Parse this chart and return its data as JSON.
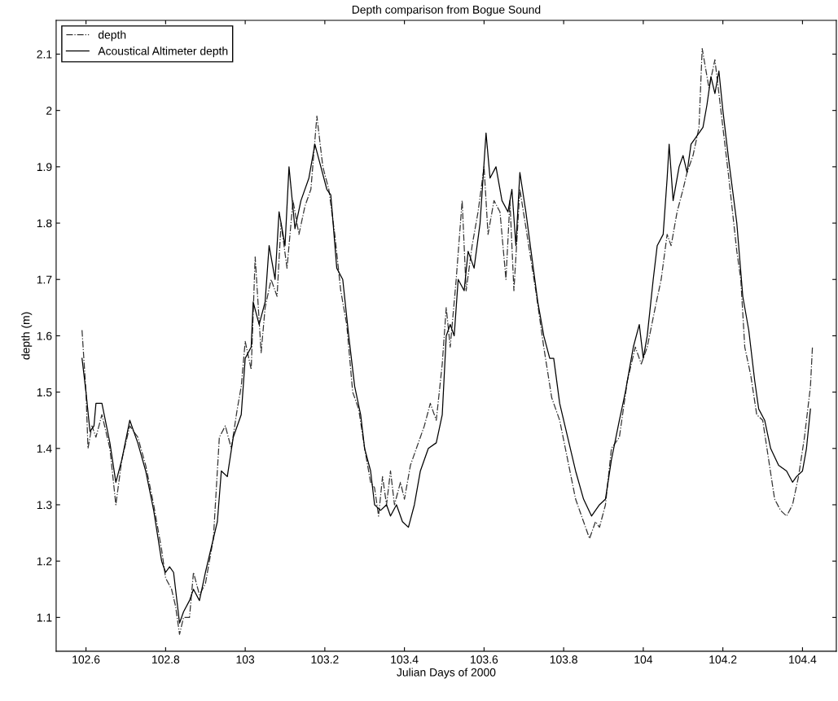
{
  "chart_data": {
    "type": "line",
    "title": "Depth comparison from Bogue Sound",
    "xlabel": "Julian Days of 2000",
    "ylabel": "depth (m)",
    "xlim": [
      102.525,
      104.485
    ],
    "ylim": [
      1.04,
      2.16
    ],
    "xticks": [
      102.6,
      102.8,
      103,
      103.2,
      103.4,
      103.6,
      103.8,
      104,
      104.2,
      104.4
    ],
    "yticks": [
      1.1,
      1.2,
      1.3,
      1.4,
      1.5,
      1.6,
      1.7,
      1.8,
      1.9,
      2,
      2.1
    ],
    "grid": false,
    "legend": "top left",
    "series": [
      {
        "name": "depth",
        "color": "#333333",
        "line_style": "dashdot",
        "x": [
          102.59,
          102.6,
          102.605,
          102.615,
          102.625,
          102.64,
          102.66,
          102.675,
          102.69,
          102.71,
          102.73,
          102.75,
          102.77,
          102.79,
          102.8,
          102.815,
          102.825,
          102.835,
          102.845,
          102.86,
          102.87,
          102.885,
          102.9,
          102.92,
          102.935,
          102.95,
          102.965,
          102.98,
          102.99,
          103.0,
          103.015,
          103.025,
          103.04,
          103.05,
          103.065,
          103.08,
          103.09,
          103.105,
          103.12,
          103.135,
          103.15,
          103.165,
          103.18,
          103.195,
          103.21,
          103.225,
          103.24,
          103.255,
          103.27,
          103.285,
          103.3,
          103.315,
          103.325,
          103.335,
          103.345,
          103.355,
          103.365,
          103.375,
          103.39,
          103.4,
          103.415,
          103.43,
          103.45,
          103.465,
          103.48,
          103.495,
          103.505,
          103.515,
          103.53,
          103.545,
          103.555,
          103.57,
          103.585,
          103.6,
          103.61,
          103.625,
          103.64,
          103.655,
          103.665,
          103.675,
          103.69,
          103.71,
          103.73,
          103.75,
          103.77,
          103.79,
          103.81,
          103.83,
          103.85,
          103.865,
          103.88,
          103.89,
          103.905,
          103.92,
          103.94,
          103.96,
          103.98,
          103.995,
          104.01,
          104.03,
          104.045,
          104.06,
          104.07,
          104.085,
          104.1,
          104.11,
          104.125,
          104.14,
          104.148,
          104.165,
          104.18,
          104.195,
          104.215,
          104.235,
          104.245,
          104.255,
          104.27,
          104.285,
          104.3,
          104.315,
          104.33,
          104.345,
          104.36,
          104.375,
          104.39,
          104.405,
          104.42,
          104.425
        ],
        "values": [
          1.61,
          1.5,
          1.4,
          1.44,
          1.42,
          1.46,
          1.4,
          1.3,
          1.38,
          1.44,
          1.42,
          1.37,
          1.3,
          1.22,
          1.17,
          1.15,
          1.12,
          1.07,
          1.1,
          1.1,
          1.18,
          1.14,
          1.16,
          1.24,
          1.42,
          1.44,
          1.4,
          1.47,
          1.51,
          1.59,
          1.54,
          1.74,
          1.57,
          1.65,
          1.7,
          1.67,
          1.8,
          1.72,
          1.84,
          1.78,
          1.83,
          1.86,
          1.99,
          1.9,
          1.86,
          1.78,
          1.68,
          1.62,
          1.5,
          1.47,
          1.4,
          1.34,
          1.33,
          1.28,
          1.35,
          1.3,
          1.36,
          1.3,
          1.34,
          1.31,
          1.37,
          1.4,
          1.44,
          1.48,
          1.45,
          1.55,
          1.65,
          1.58,
          1.7,
          1.84,
          1.68,
          1.76,
          1.82,
          1.9,
          1.78,
          1.84,
          1.82,
          1.7,
          1.84,
          1.68,
          1.86,
          1.77,
          1.68,
          1.58,
          1.49,
          1.45,
          1.38,
          1.31,
          1.27,
          1.24,
          1.27,
          1.26,
          1.3,
          1.4,
          1.42,
          1.52,
          1.58,
          1.55,
          1.58,
          1.65,
          1.7,
          1.78,
          1.76,
          1.82,
          1.86,
          1.89,
          1.92,
          1.97,
          2.11,
          2.04,
          2.09,
          2.0,
          1.88,
          1.75,
          1.7,
          1.58,
          1.53,
          1.46,
          1.45,
          1.38,
          1.31,
          1.29,
          1.28,
          1.3,
          1.35,
          1.42,
          1.51,
          1.58
        ]
      },
      {
        "name": "Acoustical Altimeter depth",
        "color": "#000000",
        "line_style": "solid",
        "x": [
          102.59,
          102.6,
          102.61,
          102.62,
          102.625,
          102.64,
          102.66,
          102.675,
          102.69,
          102.71,
          102.73,
          102.75,
          102.77,
          102.79,
          102.8,
          102.81,
          102.82,
          102.835,
          102.845,
          102.86,
          102.87,
          102.885,
          102.9,
          102.93,
          102.94,
          102.955,
          102.97,
          102.99,
          103.0,
          103.015,
          103.02,
          103.035,
          103.05,
          103.06,
          103.075,
          103.085,
          103.1,
          103.11,
          103.125,
          103.14,
          103.16,
          103.175,
          103.19,
          103.205,
          103.215,
          103.23,
          103.245,
          103.26,
          103.275,
          103.29,
          103.3,
          103.315,
          103.325,
          103.34,
          103.355,
          103.365,
          103.38,
          103.395,
          103.41,
          103.425,
          103.44,
          103.46,
          103.48,
          103.495,
          103.505,
          103.515,
          103.525,
          103.535,
          103.55,
          103.56,
          103.575,
          103.59,
          103.605,
          103.615,
          103.63,
          103.645,
          103.66,
          103.67,
          103.68,
          103.69,
          103.705,
          103.72,
          103.735,
          103.75,
          103.765,
          103.775,
          103.79,
          103.81,
          103.83,
          103.85,
          103.87,
          103.89,
          103.905,
          103.92,
          103.94,
          103.955,
          103.965,
          103.975,
          103.99,
          104.0,
          104.01,
          104.025,
          104.035,
          104.05,
          104.06,
          104.065,
          104.075,
          104.09,
          104.1,
          104.11,
          104.12,
          104.14,
          104.15,
          104.16,
          104.17,
          104.18,
          104.19,
          104.2,
          104.215,
          104.235,
          104.25,
          104.265,
          104.28,
          104.29,
          104.305,
          104.32,
          104.34,
          104.36,
          104.375,
          104.385,
          104.4,
          104.41,
          104.42
        ],
        "values": [
          1.56,
          1.5,
          1.43,
          1.44,
          1.48,
          1.48,
          1.41,
          1.34,
          1.38,
          1.45,
          1.41,
          1.36,
          1.29,
          1.2,
          1.18,
          1.19,
          1.18,
          1.09,
          1.11,
          1.13,
          1.15,
          1.13,
          1.18,
          1.27,
          1.36,
          1.35,
          1.42,
          1.46,
          1.56,
          1.58,
          1.66,
          1.62,
          1.66,
          1.76,
          1.7,
          1.82,
          1.76,
          1.9,
          1.79,
          1.84,
          1.88,
          1.94,
          1.9,
          1.86,
          1.85,
          1.72,
          1.7,
          1.6,
          1.51,
          1.46,
          1.4,
          1.36,
          1.3,
          1.29,
          1.3,
          1.28,
          1.3,
          1.27,
          1.26,
          1.3,
          1.36,
          1.4,
          1.41,
          1.46,
          1.6,
          1.62,
          1.6,
          1.7,
          1.68,
          1.75,
          1.72,
          1.8,
          1.96,
          1.88,
          1.9,
          1.84,
          1.82,
          1.86,
          1.76,
          1.89,
          1.82,
          1.74,
          1.66,
          1.6,
          1.56,
          1.56,
          1.48,
          1.42,
          1.36,
          1.31,
          1.28,
          1.3,
          1.31,
          1.38,
          1.45,
          1.5,
          1.54,
          1.58,
          1.62,
          1.56,
          1.6,
          1.7,
          1.76,
          1.78,
          1.88,
          1.94,
          1.84,
          1.9,
          1.92,
          1.89,
          1.94,
          1.96,
          1.97,
          2.01,
          2.06,
          2.03,
          2.07,
          2.0,
          1.91,
          1.8,
          1.67,
          1.61,
          1.52,
          1.47,
          1.45,
          1.4,
          1.37,
          1.36,
          1.34,
          1.35,
          1.36,
          1.4,
          1.47
        ]
      }
    ]
  }
}
